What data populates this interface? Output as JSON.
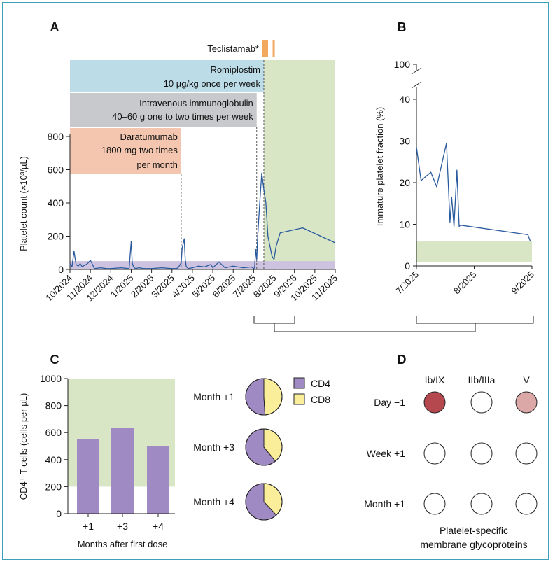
{
  "panels": {
    "a": "A",
    "b": "B",
    "c": "C",
    "d": "D"
  },
  "colors": {
    "line": "#2a5a9e",
    "romiplostim": "#bcdce8",
    "ivig": "#c7c9cc",
    "daratumumab": "#f4c6b0",
    "teclistamab": "#f2a95c",
    "green_region": "#d8e6c6",
    "purple_band": "#cdc3e0",
    "cd4": "#a08ac4",
    "cd8": "#fbee9a",
    "glyco_strong": "#b5474f",
    "glyco_weak": "#dca7a7",
    "glyco_none": "#ffffff"
  },
  "treatments": {
    "teclistamab": "Teclistamab*",
    "romiplostim": [
      "Romiplostim",
      "10 µg/kg once per week"
    ],
    "ivig": [
      "Intravenous immunoglobulin",
      "40–60 g one to two times per week"
    ],
    "daratumumab": [
      "Daratumumab",
      "1800 mg two times",
      "per month"
    ]
  },
  "chart_data": [
    {
      "id": "A",
      "type": "line",
      "title": "",
      "xlabel": "",
      "ylabel": "Platelet count (×10³/µL)",
      "ylim": [
        0,
        800
      ],
      "yticks": [
        0,
        200,
        400,
        600,
        800
      ],
      "xlim": [
        0,
        13
      ],
      "xticks": [
        "10/2024",
        "11/2024",
        "12/2024",
        "1/2025",
        "2/2025",
        "3/2025",
        "4/2025",
        "5/2025",
        "6/2025",
        "7/2025",
        "8/2025",
        "9/2025",
        "10/2025",
        "11/2025"
      ],
      "reference_band": [
        0,
        50
      ],
      "vlines": [
        5.45,
        9.15,
        9.5
      ],
      "shaded_region": [
        9.5,
        13
      ],
      "bars": [
        {
          "name": "romiplostim",
          "start": 0,
          "end": 9.5
        },
        {
          "name": "ivig",
          "start": 0,
          "end": 9.15
        },
        {
          "name": "daratumumab",
          "start": 0,
          "end": 5.45
        }
      ],
      "teclistamab_doses": [
        9.15,
        10.0
      ],
      "x": [
        0,
        0.1,
        0.2,
        0.3,
        0.4,
        0.5,
        0.6,
        0.7,
        0.8,
        0.9,
        1.0,
        1.2,
        1.5,
        1.8,
        2.0,
        2.5,
        2.9,
        3.0,
        3.05,
        3.1,
        3.2,
        3.4,
        3.6,
        3.8,
        4.0,
        4.5,
        5.0,
        5.2,
        5.3,
        5.45,
        5.5,
        5.6,
        5.65,
        5.7,
        5.8,
        6.0,
        6.3,
        6.6,
        6.9,
        7.0,
        7.3,
        7.6,
        8.0,
        8.5,
        8.9,
        9.0,
        9.05,
        9.1,
        9.15,
        9.2,
        9.3,
        9.4,
        9.5,
        9.6,
        9.7,
        9.9,
        10.0,
        10.1,
        10.3,
        11.4,
        13.0
      ],
      "values": [
        35,
        15,
        110,
        30,
        20,
        35,
        15,
        25,
        30,
        40,
        55,
        5,
        10,
        5,
        5,
        10,
        5,
        170,
        40,
        20,
        5,
        10,
        5,
        5,
        5,
        10,
        5,
        5,
        10,
        40,
        130,
        185,
        60,
        15,
        5,
        10,
        20,
        15,
        30,
        10,
        45,
        10,
        20,
        10,
        15,
        5,
        10,
        120,
        60,
        200,
        400,
        580,
        480,
        400,
        200,
        80,
        60,
        140,
        220,
        250,
        160
      ]
    },
    {
      "id": "B",
      "type": "line",
      "xlabel": "",
      "ylabel": "Immature platelet fraction (%)",
      "ylim": [
        0,
        40
      ],
      "yticks": [
        0,
        10,
        20,
        30,
        40
      ],
      "axis_break_label": "100",
      "xlim": [
        0,
        2
      ],
      "xticks": [
        "7/2025",
        "8/2025",
        "9/2025"
      ],
      "reference_band": [
        1,
        6
      ],
      "x": [
        0.0,
        0.08,
        0.25,
        0.35,
        0.52,
        0.58,
        0.61,
        0.65,
        0.7,
        0.74,
        0.76,
        1.93,
        1.97
      ],
      "values": [
        28.5,
        20.5,
        22.5,
        19.0,
        29.5,
        10.5,
        16.5,
        9.5,
        23.0,
        9.5,
        9.8,
        7.5,
        6.0
      ]
    },
    {
      "id": "C",
      "type": "bar",
      "categories": [
        "+1",
        "+3",
        "+4"
      ],
      "values": [
        550,
        635,
        500
      ],
      "xlabel": "Months after first dose",
      "ylabel": "CD4⁺ T cells (cells per µL)",
      "ylim": [
        0,
        1000
      ],
      "yticks": [
        0,
        200,
        400,
        600,
        800,
        1000
      ],
      "reference_band": [
        200,
        1000
      ]
    },
    {
      "id": "C-pies",
      "type": "pie",
      "legend": [
        "CD4",
        "CD8"
      ],
      "series": [
        {
          "name": "Month +1",
          "values": [
            51,
            49
          ]
        },
        {
          "name": "Month +3",
          "values": [
            61,
            39
          ]
        },
        {
          "name": "Month +4",
          "values": [
            62,
            38
          ]
        }
      ]
    },
    {
      "id": "D",
      "type": "table",
      "columns": [
        "Ib/IX",
        "IIb/IIIa",
        "V"
      ],
      "rows": [
        {
          "label": "Day −1",
          "levels": [
            "strong",
            "none",
            "weak"
          ]
        },
        {
          "label": "Week +1",
          "levels": [
            "none",
            "none",
            "none"
          ]
        },
        {
          "label": "Month +1",
          "levels": [
            "none",
            "none",
            "none"
          ]
        }
      ],
      "caption": [
        "Platelet-specific",
        "membrane glycoproteins"
      ]
    }
  ]
}
